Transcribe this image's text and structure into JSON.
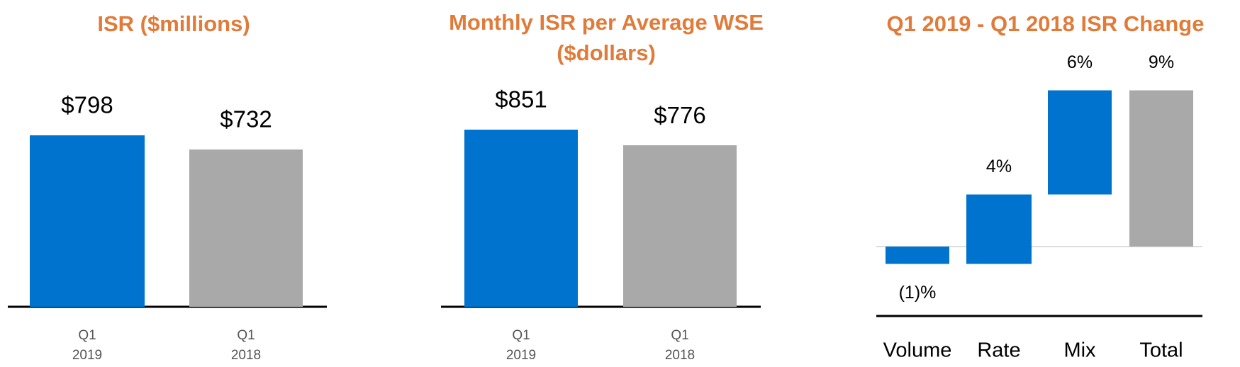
{
  "chart_data": [
    {
      "type": "bar",
      "title": "ISR ($millions)",
      "categories": [
        "Q1 2019",
        "Q1 2018"
      ],
      "values": [
        798,
        732
      ],
      "value_labels": [
        "$798",
        "$732"
      ],
      "colors": [
        "#0073cf",
        "#a9a9a9"
      ]
    },
    {
      "type": "bar",
      "title": "Monthly ISR per Average WSE ($dollars)",
      "categories": [
        "Q1 2019",
        "Q1 2018"
      ],
      "values": [
        851,
        776
      ],
      "value_labels": [
        "$851",
        "$776"
      ],
      "colors": [
        "#0073cf",
        "#a9a9a9"
      ]
    },
    {
      "type": "waterfall",
      "title": "Q1 2019 - Q1 2018 ISR Change",
      "categories": [
        "Volume",
        "Rate",
        "Mix",
        "Total"
      ],
      "values": [
        -1,
        4,
        6,
        9
      ],
      "value_labels": [
        "(1)%",
        "4%",
        "6%",
        "9%"
      ],
      "colors": [
        "#0073cf",
        "#0073cf",
        "#0073cf",
        "#a9a9a9"
      ]
    }
  ]
}
